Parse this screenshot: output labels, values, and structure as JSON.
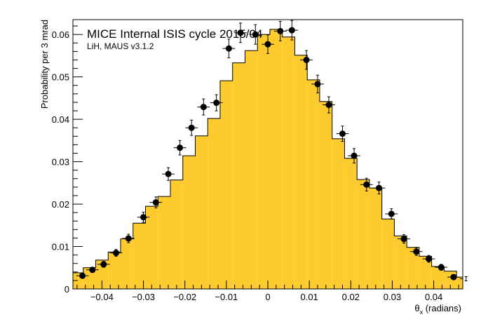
{
  "chart_data": {
    "type": "bar",
    "title": "MICE Internal ISIS cycle 2015/04",
    "subtitle": "LiH, MAUS v3.1.2",
    "xlabel_symbol": "θ",
    "xlabel_sub": "x",
    "xlabel_rest": " (radians)",
    "ylabel": "Probability per 3 mrad",
    "xlim": [
      -0.047,
      0.047
    ],
    "ylim": [
      0,
      0.0635
    ],
    "x_ticks": [
      -0.04,
      -0.03,
      -0.02,
      -0.01,
      0,
      0.01,
      0.02,
      0.03,
      0.04
    ],
    "x_tick_labels": [
      "−0.04",
      "−0.03",
      "−0.02",
      "−0.01",
      "0",
      "0.01",
      "0.02",
      "0.03",
      "0.04"
    ],
    "y_ticks": [
      0,
      0.01,
      0.02,
      0.03,
      0.04,
      0.05,
      0.06
    ],
    "y_tick_labels": [
      "0",
      "0.01",
      "0.02",
      "0.03",
      "0.04",
      "0.05",
      "0.06"
    ],
    "hist_fill_color": "#fdcb2e",
    "marker_color": "#000000",
    "histogram": {
      "bin_width": 0.003,
      "bin_low_edges": [
        -0.0475,
        -0.0445,
        -0.0415,
        -0.0385,
        -0.0355,
        -0.0325,
        -0.0295,
        -0.0265,
        -0.0235,
        -0.0205,
        -0.0175,
        -0.0145,
        -0.0115,
        -0.0085,
        -0.0055,
        -0.0025,
        0.0005,
        0.0035,
        0.0065,
        0.0095,
        0.0125,
        0.0155,
        0.0185,
        0.0215,
        0.0245,
        0.0275,
        0.0305,
        0.0335,
        0.0365,
        0.0395,
        0.0425,
        0.0455
      ],
      "values": [
        0.0038,
        0.005,
        0.0068,
        0.0087,
        0.0118,
        0.0155,
        0.0195,
        0.0218,
        0.0257,
        0.0314,
        0.0361,
        0.0402,
        0.0491,
        0.0533,
        0.0562,
        0.06,
        0.0612,
        0.0594,
        0.0551,
        0.0493,
        0.0442,
        0.0354,
        0.0308,
        0.0258,
        0.0238,
        0.0165,
        0.0125,
        0.0098,
        0.0077,
        0.0053,
        0.0042,
        0.0028
      ]
    },
    "data_points": {
      "x": [
        -0.0447,
        -0.0423,
        -0.0396,
        -0.0366,
        -0.0336,
        -0.03,
        -0.027,
        -0.024,
        -0.0212,
        -0.0184,
        -0.0155,
        -0.0124,
        -0.0094,
        -0.0066,
        -0.003,
        0.0,
        0.003,
        0.0058,
        0.0093,
        0.012,
        0.0147,
        0.018,
        0.0208,
        0.0238,
        0.0268,
        0.0298,
        0.0328,
        0.0358,
        0.0388,
        0.0418,
        0.0448,
        0.0478
      ],
      "y": [
        0.0031,
        0.0045,
        0.0058,
        0.0085,
        0.0119,
        0.0169,
        0.0204,
        0.0271,
        0.0333,
        0.038,
        0.0429,
        0.0439,
        0.0567,
        0.0604,
        0.06,
        0.0577,
        0.0608,
        0.061,
        0.054,
        0.0483,
        0.0434,
        0.0366,
        0.0314,
        0.0246,
        0.0238,
        0.0177,
        0.0118,
        0.0088,
        0.0071,
        0.0051,
        0.0028,
        0.0024
      ],
      "y_err": [
        0.0005,
        0.0006,
        0.0007,
        0.0008,
        0.001,
        0.0012,
        0.0013,
        0.0015,
        0.0017,
        0.0018,
        0.0019,
        0.0019,
        0.0022,
        0.0023,
        0.0023,
        0.0022,
        0.0023,
        0.0023,
        0.0022,
        0.0021,
        0.0019,
        0.0018,
        0.0017,
        0.0015,
        0.0014,
        0.0012,
        0.001,
        0.0009,
        0.0008,
        0.0007,
        0.0005,
        0.0005
      ],
      "x_err": 0.0015
    }
  }
}
